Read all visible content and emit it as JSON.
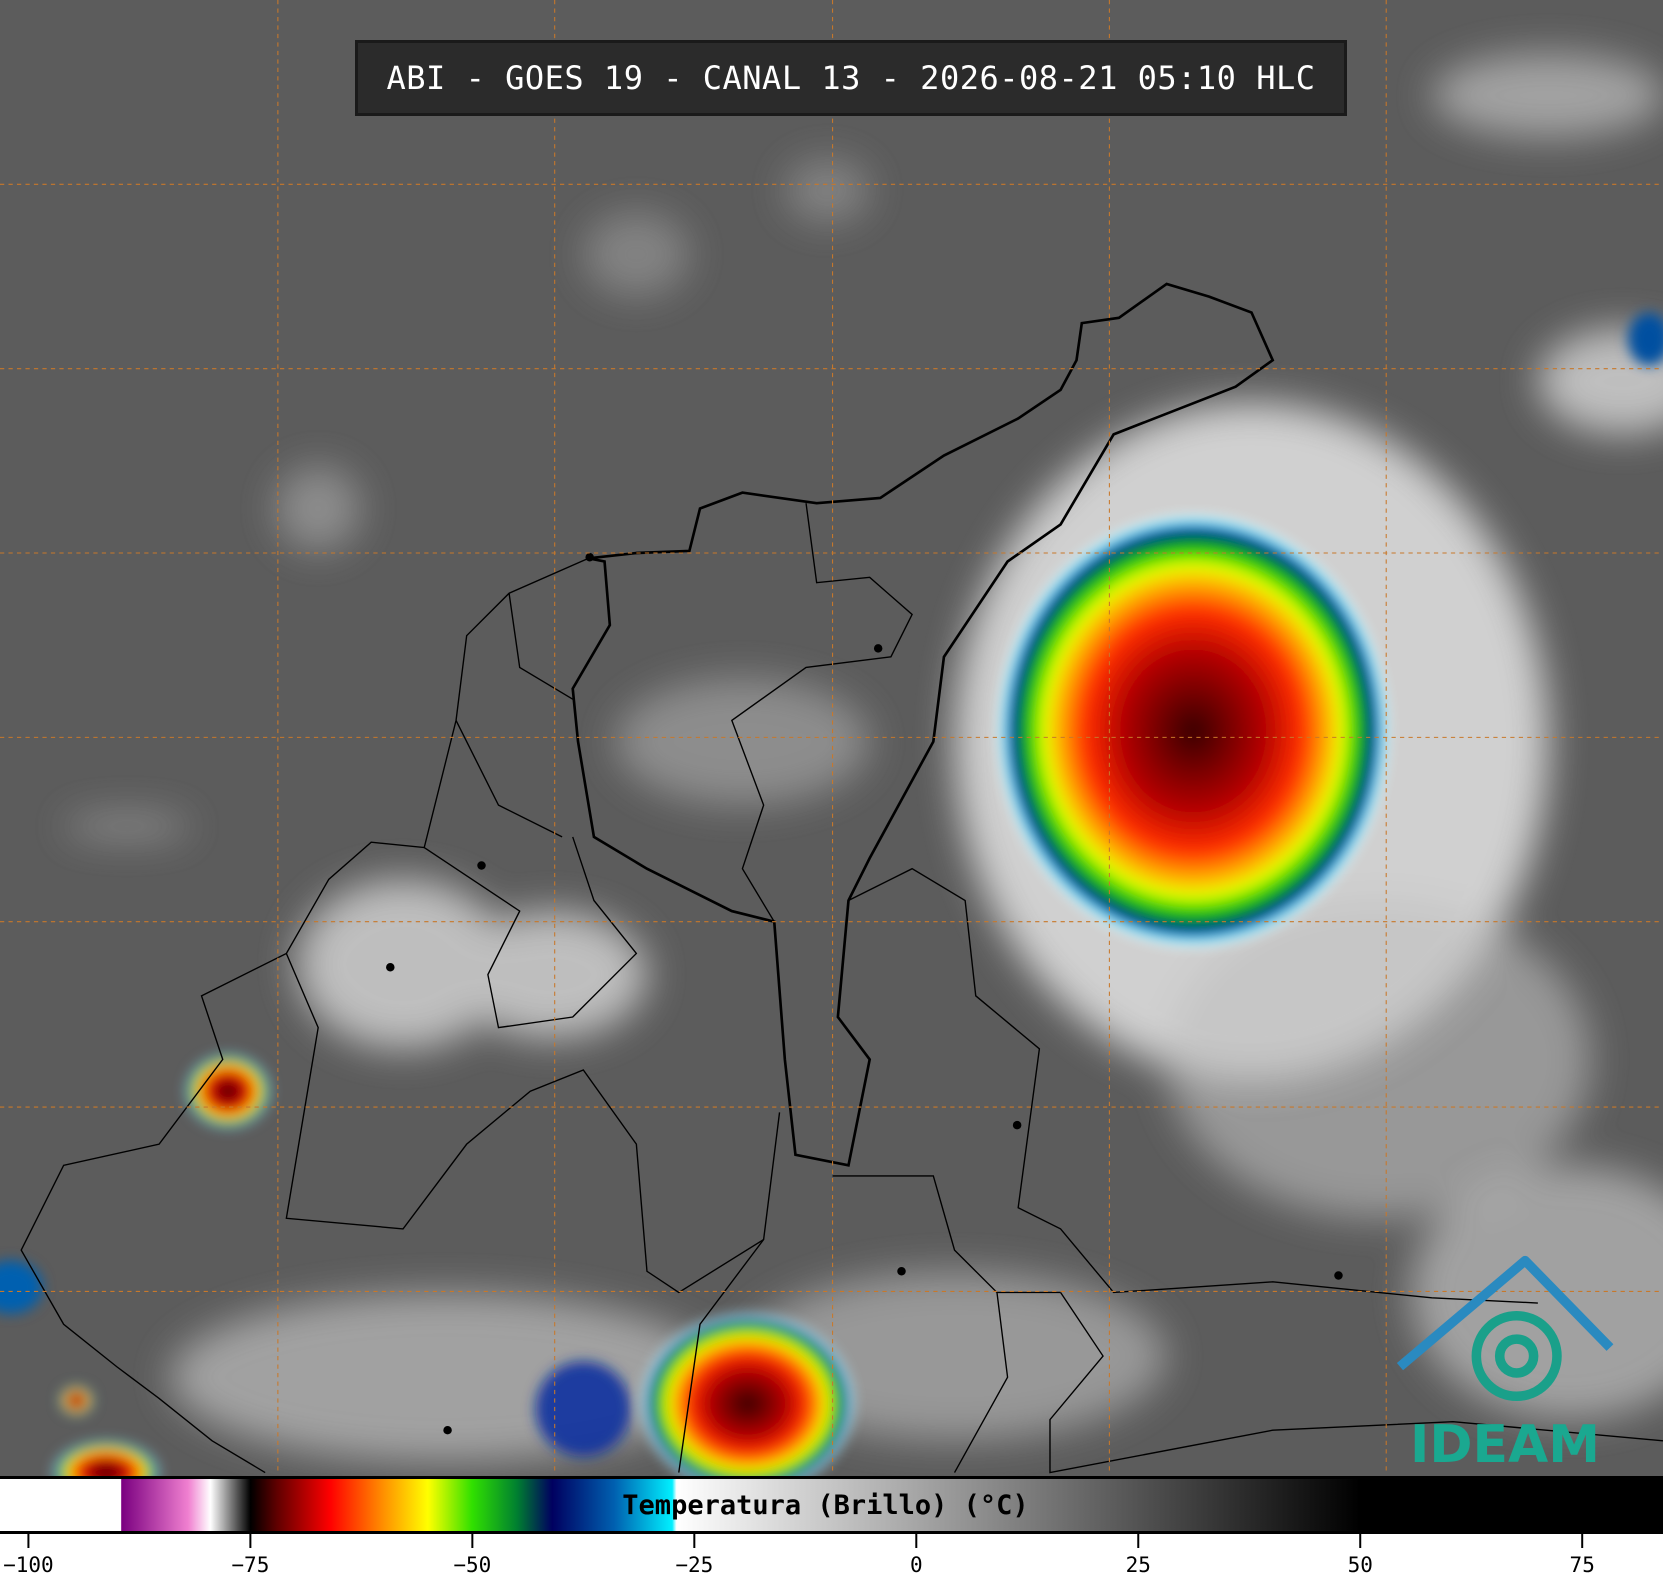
{
  "title": "ABI - GOES 19 - CANAL 13 - 2026-08-21 05:10 HLC",
  "colorbar": {
    "label": "Temperatura (Brillo) (°C)",
    "lim": [
      -103.2,
      84.1
    ],
    "ticks": [
      {
        "value": -100,
        "label": "−100"
      },
      {
        "value": -75,
        "label": "−75"
      },
      {
        "value": -50,
        "label": "−50"
      },
      {
        "value": -25,
        "label": "−25"
      },
      0,
      25,
      50,
      75
    ]
  },
  "logo": "IDEAM"
}
